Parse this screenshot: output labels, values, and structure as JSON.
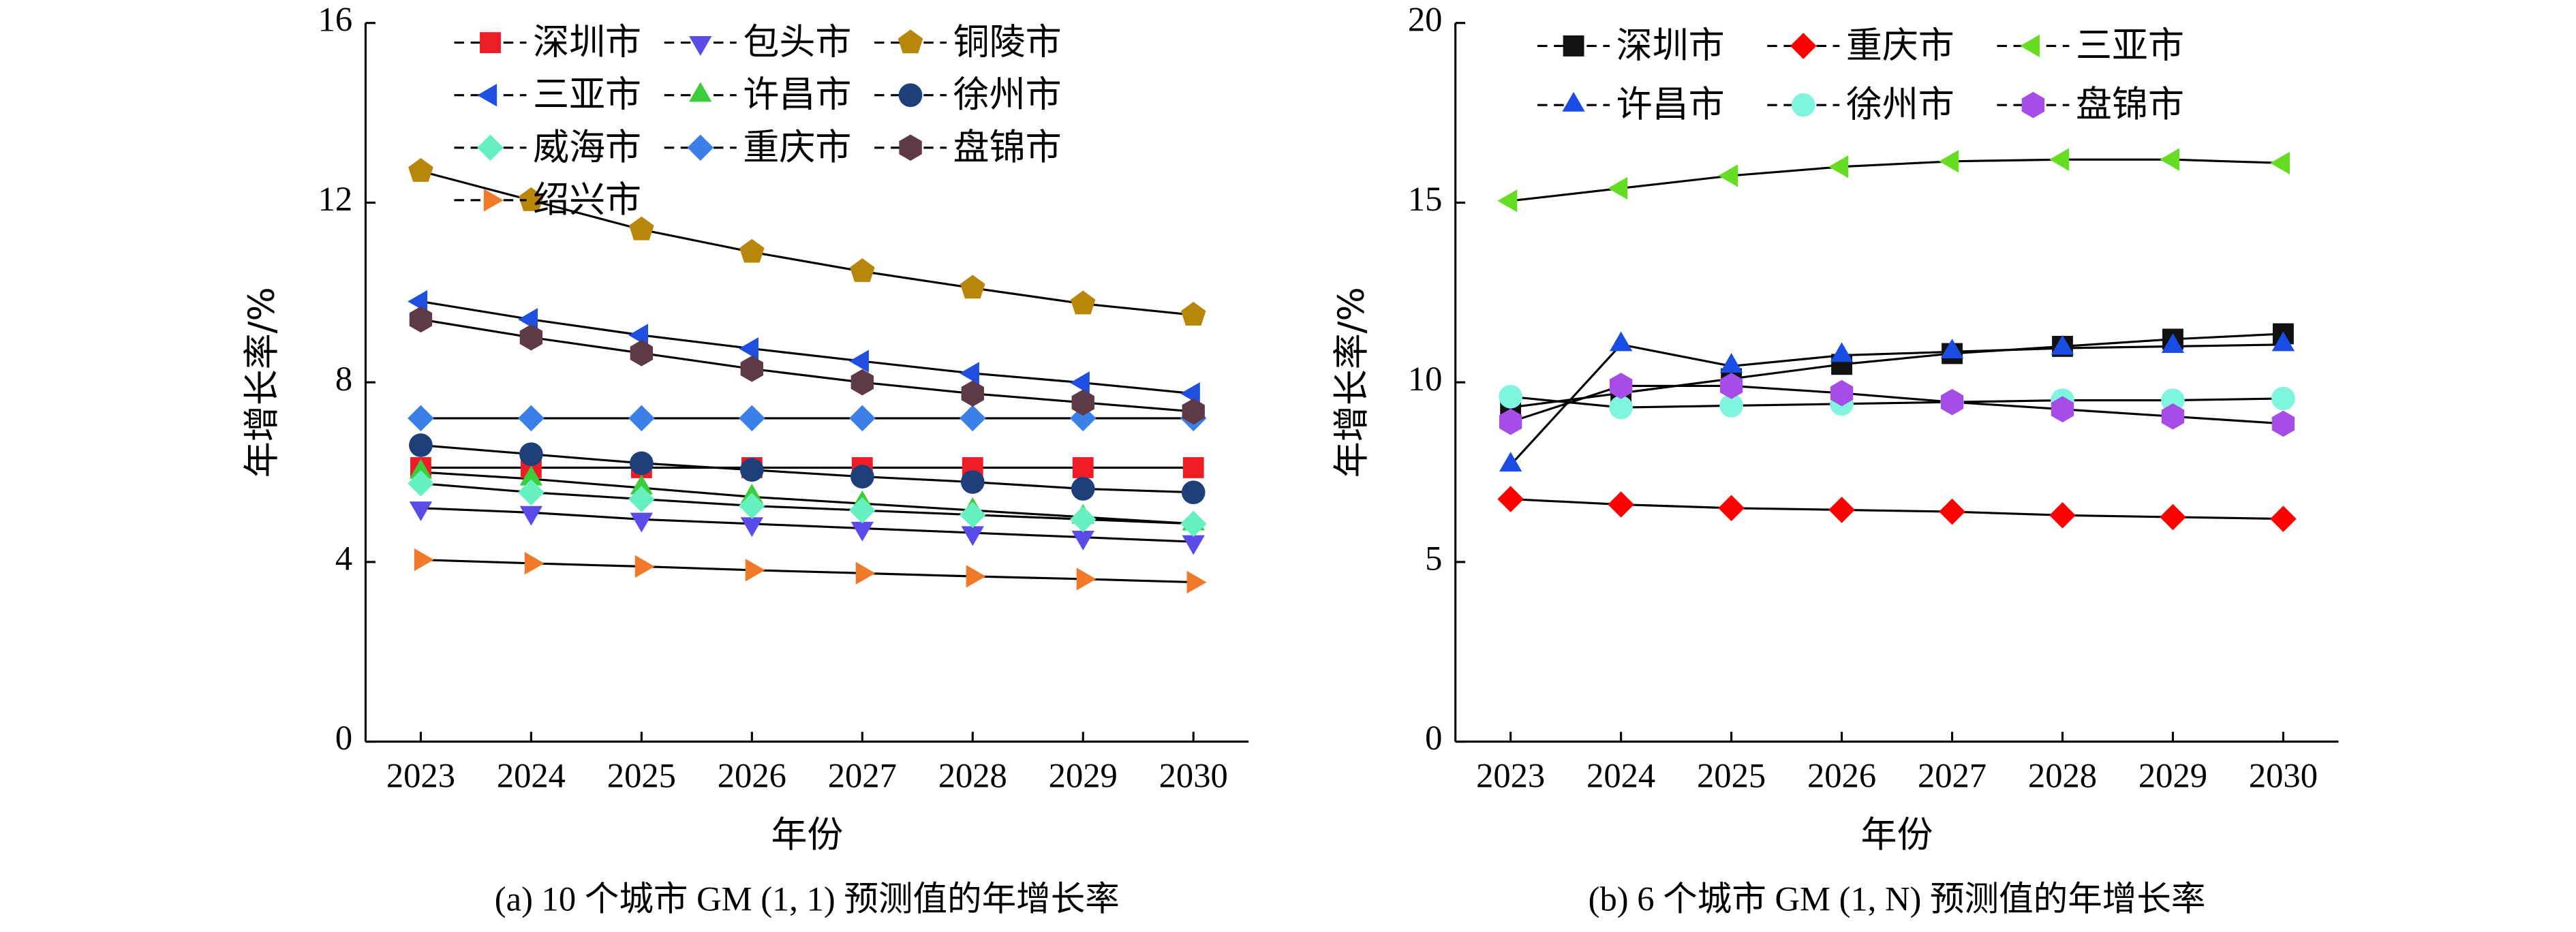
{
  "chart_data": [
    {
      "type": "line",
      "caption": "(a) 10 个城市 GM (1, 1) 预测值的年增长率",
      "x_label": "年份",
      "y_label": "年增长率/%",
      "x": [
        2023,
        2024,
        2025,
        2026,
        2027,
        2028,
        2029,
        2030
      ],
      "xlim": [
        2022.5,
        2030.5
      ],
      "xticks": [
        2023,
        2024,
        2025,
        2026,
        2027,
        2028,
        2029,
        2030
      ],
      "ylim": [
        0,
        16
      ],
      "yticks": [
        0,
        4,
        8,
        12,
        16
      ],
      "series": [
        {
          "name": "深圳市",
          "color": "#ee1c25",
          "marker": "square",
          "values": [
            6.1,
            6.1,
            6.1,
            6.1,
            6.1,
            6.1,
            6.1,
            6.1
          ]
        },
        {
          "name": "包头市",
          "color": "#5b4be8",
          "marker": "down",
          "values": [
            5.2,
            5.1,
            4.95,
            4.85,
            4.75,
            4.65,
            4.55,
            4.45
          ]
        },
        {
          "name": "铜陵市",
          "color": "#b8860b",
          "marker": "pentagon",
          "values": [
            12.7,
            12.05,
            11.4,
            10.9,
            10.47,
            10.1,
            9.75,
            9.5
          ]
        },
        {
          "name": "三亚市",
          "color": "#1f4fe0",
          "marker": "left",
          "values": [
            9.8,
            9.4,
            9.05,
            8.75,
            8.47,
            8.2,
            7.99,
            7.75
          ]
        },
        {
          "name": "许昌市",
          "color": "#3ccd3c",
          "marker": "up",
          "values": [
            6.0,
            5.85,
            5.65,
            5.45,
            5.3,
            5.15,
            5.0,
            4.85
          ]
        },
        {
          "name": "徐州市",
          "color": "#1e3f7a",
          "marker": "circle",
          "values": [
            6.6,
            6.4,
            6.2,
            6.05,
            5.9,
            5.78,
            5.63,
            5.55
          ]
        },
        {
          "name": "威海市",
          "color": "#66f0c0",
          "marker": "diamond",
          "values": [
            5.75,
            5.55,
            5.4,
            5.25,
            5.15,
            5.05,
            4.95,
            4.85
          ]
        },
        {
          "name": "重庆市",
          "color": "#3b7fe8",
          "marker": "diamond",
          "values": [
            7.2,
            7.2,
            7.2,
            7.2,
            7.2,
            7.2,
            7.2,
            7.2
          ]
        },
        {
          "name": "盘锦市",
          "color": "#5e3a48",
          "marker": "hexagon",
          "values": [
            9.4,
            9.0,
            8.65,
            8.3,
            8.0,
            7.75,
            7.55,
            7.35
          ]
        },
        {
          "name": "绍兴市",
          "color": "#f07a2a",
          "marker": "right",
          "values": [
            4.05,
            3.97,
            3.9,
            3.82,
            3.75,
            3.68,
            3.62,
            3.55
          ]
        }
      ]
    },
    {
      "type": "line",
      "caption": "(b) 6 个城市 GM (1, N) 预测值的年增长率",
      "x_label": "年份",
      "y_label": "年增长率/%",
      "x": [
        2023,
        2024,
        2025,
        2026,
        2027,
        2028,
        2029,
        2030
      ],
      "xlim": [
        2022.5,
        2030.5
      ],
      "xticks": [
        2023,
        2024,
        2025,
        2026,
        2027,
        2028,
        2029,
        2030
      ],
      "ylim": [
        0,
        20
      ],
      "yticks": [
        0,
        5,
        10,
        15,
        20
      ],
      "series": [
        {
          "name": "深圳市",
          "color": "#111111",
          "marker": "square",
          "values": [
            9.3,
            9.7,
            10.1,
            10.5,
            10.8,
            11.0,
            11.2,
            11.35
          ]
        },
        {
          "name": "重庆市",
          "color": "#ff0000",
          "marker": "diamond",
          "values": [
            6.75,
            6.6,
            6.5,
            6.45,
            6.4,
            6.3,
            6.25,
            6.2
          ]
        },
        {
          "name": "三亚市",
          "color": "#66dd22",
          "marker": "left",
          "values": [
            15.05,
            15.4,
            15.75,
            16.0,
            16.15,
            16.2,
            16.2,
            16.1
          ]
        },
        {
          "name": "许昌市",
          "color": "#1a4de6",
          "marker": "up",
          "values": [
            7.7,
            11.05,
            10.45,
            10.75,
            10.85,
            10.95,
            11.0,
            11.05
          ]
        },
        {
          "name": "徐州市",
          "color": "#7ff5e0",
          "marker": "circle",
          "values": [
            9.6,
            9.3,
            9.35,
            9.4,
            9.45,
            9.5,
            9.5,
            9.55
          ]
        },
        {
          "name": "盘锦市",
          "color": "#a64de8",
          "marker": "hexagon",
          "values": [
            8.9,
            9.9,
            9.9,
            9.7,
            9.45,
            9.25,
            9.05,
            8.85
          ]
        }
      ]
    }
  ]
}
